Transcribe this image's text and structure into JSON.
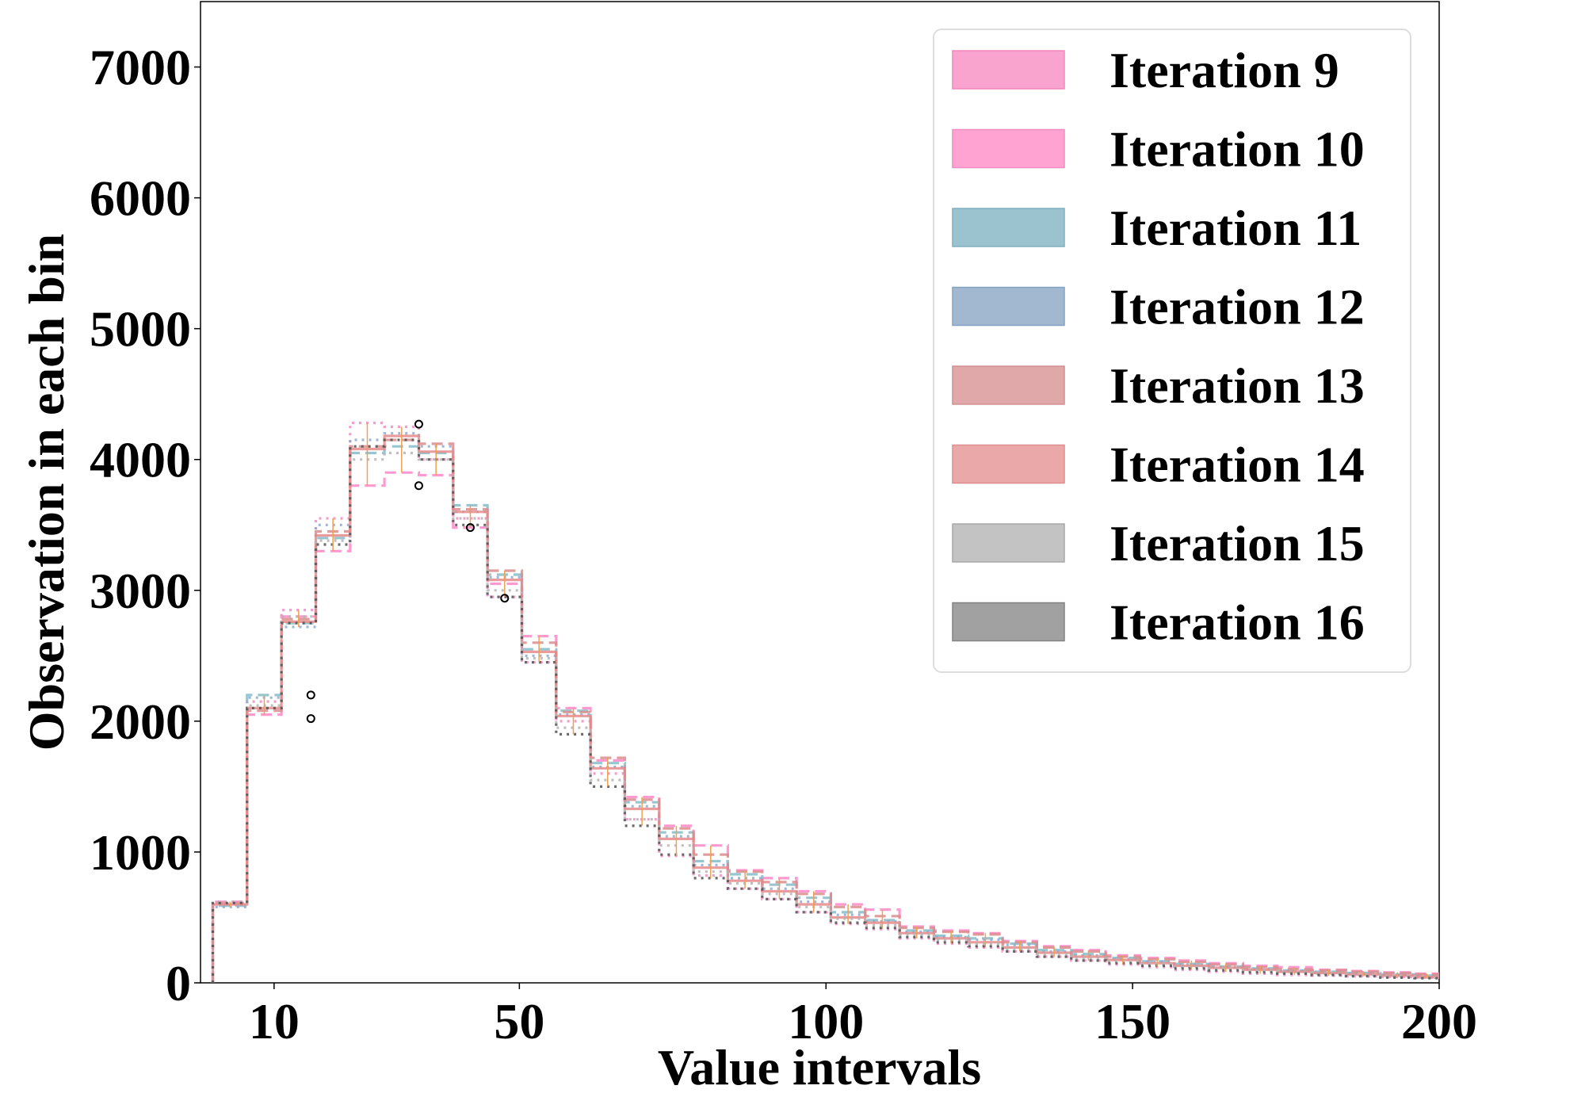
{
  "chart_data": {
    "type": "histogram",
    "title": "",
    "xlabel": "Value intervals",
    "ylabel": "Observation in each bin",
    "xlim": [
      0,
      200
    ],
    "ylim": [
      0,
      7500
    ],
    "x_ticks": [
      10,
      50,
      100,
      150,
      200
    ],
    "y_ticks": [
      0,
      1000,
      2000,
      3000,
      4000,
      5000,
      6000,
      7000
    ],
    "bin_edges": [
      0,
      5.6,
      11.2,
      16.8,
      22.4,
      28.0,
      33.6,
      39.2,
      44.8,
      50.4,
      56.0,
      61.6,
      67.2,
      72.8,
      78.4,
      84.0,
      89.6,
      95.2,
      100.8,
      106.4,
      112.0,
      117.6,
      123.2,
      128.8,
      134.4,
      140.0,
      145.6,
      151.2,
      156.8,
      162.4,
      168.0,
      173.6,
      179.2,
      184.8,
      190.4,
      196.0,
      201.6
    ],
    "legend_position": "top-right",
    "series": [
      {
        "name": "Iteration 9",
        "color": "#f28cc4",
        "style": "dotted",
        "values": [
          600,
          2150,
          2850,
          3550,
          4280,
          4250,
          4000,
          3550,
          2950,
          2450,
          2000,
          1600,
          1250,
          970,
          820,
          720,
          640,
          540,
          450,
          410,
          340,
          300,
          270,
          240,
          200,
          170,
          140,
          120,
          100,
          85,
          70,
          60,
          55,
          50,
          45,
          40
        ]
      },
      {
        "name": "Iteration 10",
        "color": "#ff88c8",
        "style": "dashed",
        "values": [
          620,
          2050,
          2800,
          3300,
          3800,
          3900,
          3880,
          3480,
          3050,
          2650,
          2100,
          1700,
          1420,
          1200,
          1050,
          860,
          800,
          700,
          600,
          560,
          430,
          400,
          380,
          320,
          280,
          250,
          210,
          190,
          170,
          150,
          130,
          120,
          100,
          90,
          80,
          70
        ]
      },
      {
        "name": "Iteration 11",
        "color": "#86bcc8",
        "style": "dashed",
        "values": [
          590,
          2200,
          2750,
          3400,
          4050,
          4100,
          4050,
          3650,
          3120,
          2550,
          2080,
          1680,
          1380,
          1150,
          930,
          830,
          750,
          650,
          540,
          480,
          400,
          360,
          340,
          300,
          250,
          220,
          190,
          165,
          145,
          125,
          110,
          95,
          85,
          75,
          65,
          55
        ]
      },
      {
        "name": "Iteration 12",
        "color": "#8caad0",
        "style": "dotted",
        "values": [
          580,
          2180,
          2720,
          3500,
          4150,
          4200,
          4100,
          3600,
          3100,
          2500,
          2050,
          1650,
          1350,
          1120,
          900,
          800,
          720,
          620,
          520,
          470,
          390,
          350,
          330,
          290,
          240,
          210,
          180,
          160,
          140,
          120,
          105,
          90,
          80,
          70,
          60,
          50
        ]
      },
      {
        "name": "Iteration 13",
        "color": "#d98c8c",
        "style": "dashed",
        "values": [
          610,
          2080,
          2780,
          3450,
          4100,
          4150,
          4120,
          3620,
          3150,
          2600,
          2070,
          1720,
          1400,
          1180,
          980,
          850,
          770,
          680,
          580,
          510,
          420,
          390,
          370,
          310,
          270,
          240,
          200,
          180,
          160,
          140,
          120,
          105,
          95,
          85,
          75,
          65
        ]
      },
      {
        "name": "Iteration 14",
        "color": "#e68a8a",
        "style": "solid",
        "values": [
          600,
          2100,
          2760,
          3420,
          4080,
          4180,
          4060,
          3600,
          3080,
          2530,
          2040,
          1640,
          1330,
          1100,
          880,
          780,
          700,
          600,
          500,
          460,
          380,
          340,
          310,
          270,
          230,
          200,
          175,
          150,
          130,
          115,
          100,
          85,
          75,
          65,
          55,
          45
        ]
      },
      {
        "name": "Iteration 15",
        "color": "#b4b4b4",
        "style": "dotted",
        "values": [
          620,
          2120,
          2800,
          3380,
          4000,
          4050,
          4000,
          3550,
          3000,
          2480,
          1950,
          1550,
          1250,
          1050,
          850,
          760,
          680,
          580,
          490,
          440,
          370,
          330,
          300,
          260,
          220,
          190,
          165,
          145,
          125,
          110,
          95,
          80,
          70,
          60,
          50,
          40
        ]
      },
      {
        "name": "Iteration 16",
        "color": "#505050",
        "style": "dotted",
        "values": [
          610,
          2100,
          2750,
          3350,
          4100,
          4150,
          4000,
          3500,
          2950,
          2450,
          1900,
          1500,
          1200,
          980,
          800,
          720,
          640,
          540,
          460,
          420,
          350,
          310,
          280,
          240,
          200,
          170,
          150,
          130,
          110,
          95,
          80,
          70,
          60,
          50,
          40,
          35
        ]
      }
    ],
    "legend_swatches": [
      {
        "name": "Iteration 9",
        "fill": "#f9a3cf",
        "edge": "#ee88bd"
      },
      {
        "name": "Iteration 10",
        "fill": "#ffa3d3",
        "edge": "#f08cc0"
      },
      {
        "name": "Iteration 11",
        "fill": "#9ac2cf",
        "edge": "#7fb0bf"
      },
      {
        "name": "Iteration 12",
        "fill": "#a2b8d1",
        "edge": "#86a2c2"
      },
      {
        "name": "Iteration 13",
        "fill": "#e0a8a8",
        "edge": "#d08f8f"
      },
      {
        "name": "Iteration 14",
        "fill": "#eaa8a8",
        "edge": "#dd8e8e"
      },
      {
        "name": "Iteration 15",
        "fill": "#c3c3c3",
        "edge": "#a8a8a8"
      },
      {
        "name": "Iteration 16",
        "fill": "#a1a1a1",
        "edge": "#828282"
      }
    ],
    "outliers": [
      {
        "x": 16.0,
        "y": 2200
      },
      {
        "x": 16.0,
        "y": 2020
      },
      {
        "x": 33.6,
        "y": 4270
      },
      {
        "x": 33.6,
        "y": 3800
      },
      {
        "x": 42.0,
        "y": 3480
      },
      {
        "x": 47.6,
        "y": 2940
      }
    ]
  }
}
